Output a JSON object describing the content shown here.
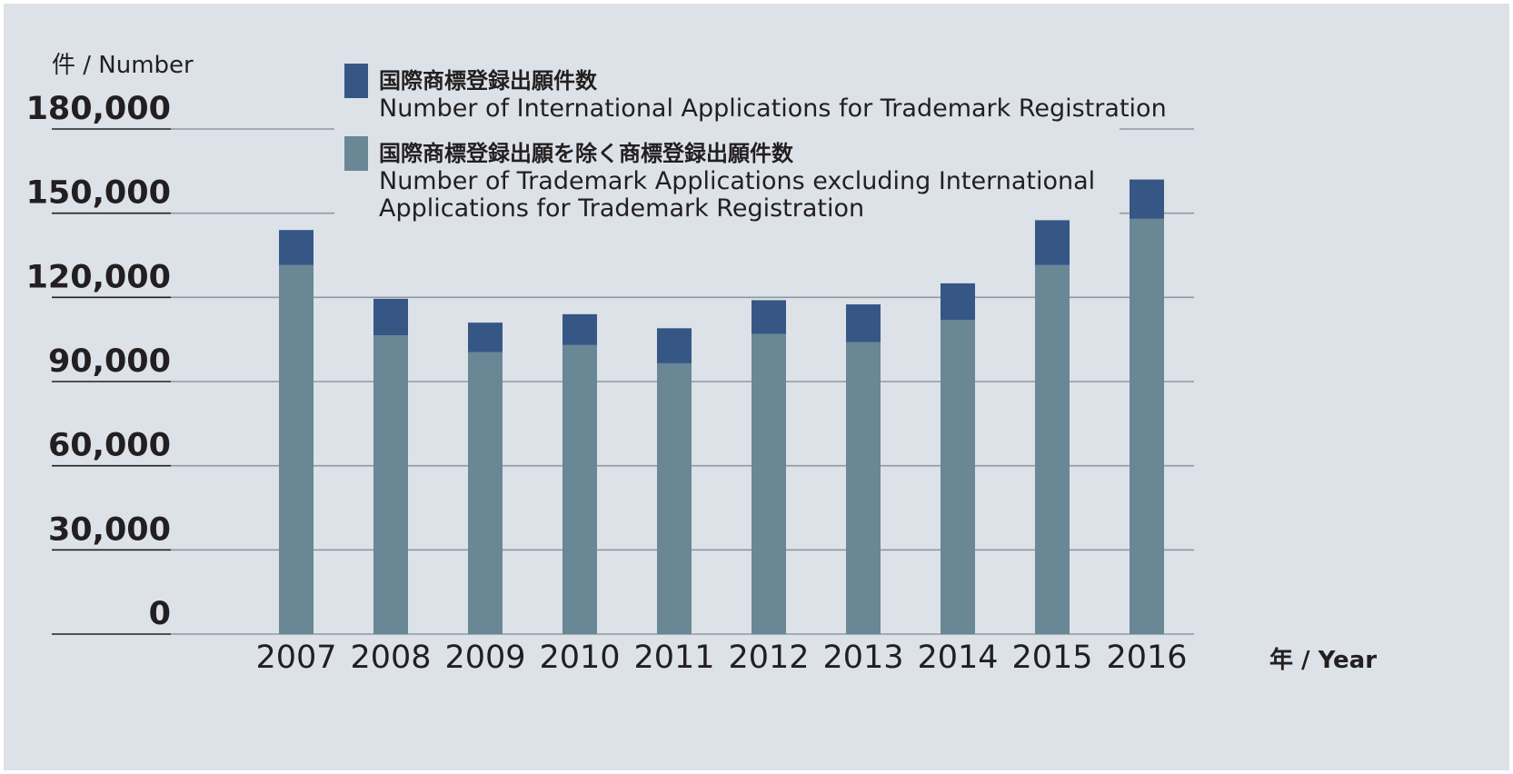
{
  "chart_data": {
    "type": "bar",
    "stacked": true,
    "ylabel": "件 / Number",
    "xlabel": "年 / Year",
    "ylim": [
      0,
      180000
    ],
    "yticks": [
      0,
      30000,
      60000,
      90000,
      120000,
      150000,
      180000
    ],
    "ytick_labels": [
      "0",
      "30,000",
      "60,000",
      "90,000",
      "120,000",
      "150,000",
      "180,000"
    ],
    "categories": [
      "2007",
      "2008",
      "2009",
      "2010",
      "2011",
      "2012",
      "2013",
      "2014",
      "2015",
      "2016"
    ],
    "series": [
      {
        "name_jp": "国際商標登録出願を除く商標登録出願件数",
        "name_en_lines": [
          "Number of Trademark Applications excluding International",
          "Applications for Trademark Registration"
        ],
        "color": "#6a8795",
        "values": [
          131500,
          106500,
          100500,
          103000,
          96500,
          107000,
          104000,
          112000,
          131500,
          148000
        ]
      },
      {
        "name_jp": "国際商標登録出願件数",
        "name_en_lines": [
          "Number of International Applications for Trademark Registration"
        ],
        "color": "#365785",
        "values": [
          12500,
          13000,
          10500,
          11000,
          12500,
          12000,
          13500,
          13000,
          16000,
          14000
        ]
      }
    ],
    "grid": true,
    "legend_position": "top"
  }
}
